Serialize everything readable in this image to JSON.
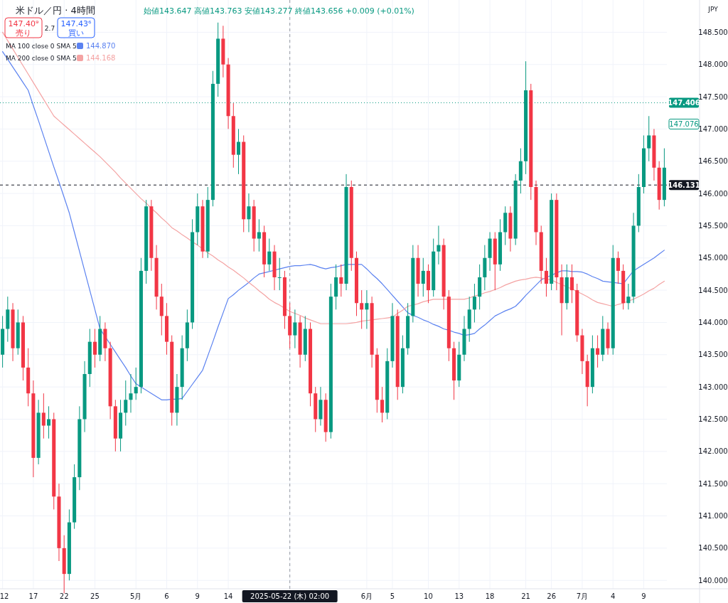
{
  "chart_data": {
    "type": "candlestick",
    "title": "米ドル／円 · 4時間",
    "subtitle": "始値143.647 高値143.763 安値143.277 終値143.656 +0.009 (+0.01%)",
    "categories": [
      "12",
      null,
      null,
      null,
      null,
      null,
      "17",
      null,
      null,
      null,
      null,
      null,
      "22",
      null,
      null,
      null,
      null,
      null,
      "25",
      null,
      null,
      null,
      null,
      null,
      null,
      null,
      "5月",
      null,
      null,
      null,
      null,
      null,
      "6",
      null,
      null,
      null,
      null,
      null,
      "9",
      null,
      null,
      null,
      null,
      null,
      "14",
      null,
      null,
      null,
      null,
      null,
      null,
      null,
      null,
      null,
      null,
      null,
      "2025-05-22 (木) 02:00",
      null,
      null,
      null,
      null,
      null,
      null,
      null,
      null,
      null,
      null,
      null,
      null,
      null,
      null,
      "6月",
      null,
      null,
      null,
      null,
      "5",
      null,
      null,
      null,
      null,
      null,
      null,
      "10",
      null,
      null,
      null,
      null,
      null,
      "13",
      null,
      null,
      null,
      null,
      null,
      "18",
      null,
      null,
      null,
      null,
      null,
      null,
      "21",
      null,
      null,
      null,
      null,
      "26",
      null,
      null,
      null,
      null,
      null,
      "7月",
      null,
      null,
      null,
      null,
      null,
      "4",
      null,
      null,
      null,
      null,
      null,
      "9",
      null,
      null,
      null,
      null
    ],
    "colors": [
      "#089981",
      "#089981",
      "#f23645",
      "#089981",
      "#f23645",
      "#f23645",
      "#f23645",
      "#089981",
      "#f23645",
      "#089981",
      "#f23645",
      "#f23645",
      "#f23645",
      "#089981",
      "#089981",
      "#089981",
      "#089981",
      "#089981",
      "#f23645",
      "#089981",
      "#f23645",
      "#f23645",
      "#f23645",
      "#089981",
      "#089981",
      "#089981",
      "#089981",
      "#089981",
      "#089981",
      "#f23645",
      "#f23645",
      "#f23645",
      "#f23645",
      "#f23645",
      "#089981",
      "#089981",
      "#089981",
      "#089981",
      "#089981",
      "#f23645",
      "#089981",
      "#089981",
      "#089981",
      "#f23645",
      "#f23645",
      "#f23645",
      "#089981",
      "#f23645",
      "#089981",
      "#f23645",
      "#089981",
      "#f23645",
      "#089981",
      "#f23645",
      "#089981",
      "#f23645",
      "#f23645",
      "#089981",
      "#f23645",
      "#089981",
      "#f23645",
      "#f23645",
      "#089981",
      "#f23645",
      "#089981",
      "#089981",
      "#f23645",
      "#089981",
      "#f23645",
      "#f23645",
      "#f23645",
      "#089981",
      "#f23645",
      "#f23645",
      "#f23645",
      "#089981",
      "#089981",
      "#f23645",
      "#089981",
      "#089981",
      "#089981",
      "#f23645",
      "#089981",
      "#f23645",
      "#089981",
      "#089981",
      "#f23645",
      "#f23645",
      "#f23645",
      "#089981",
      "#089981",
      "#089981",
      "#089981",
      "#089981",
      "#089981",
      "#089981",
      "#f23645",
      "#089981",
      "#089981",
      "#f23645",
      "#089981",
      "#089981",
      "#089981",
      "#f23645",
      "#f23645",
      "#f23645",
      "#f23645",
      "#089981",
      "#f23645",
      "#f23645",
      "#089981",
      "#f23645",
      "#f23645",
      "#f23645",
      "#f23645",
      "#089981",
      "#f23645",
      "#089981",
      "#f23645",
      "#089981",
      "#f23645",
      "#f23645",
      "#089981",
      "#089981",
      "#089981",
      "#089981",
      "#089981",
      "#f23645",
      "#f23645",
      "#089981"
    ],
    "ohlc": [
      [
        143.5,
        144.1,
        143.3,
        143.9
      ],
      [
        143.9,
        144.4,
        143.7,
        144.2
      ],
      [
        144.2,
        144.3,
        143.4,
        143.6
      ],
      [
        143.6,
        144.2,
        143.5,
        144.0
      ],
      [
        144.0,
        144.1,
        143.1,
        143.3
      ],
      [
        143.3,
        143.6,
        142.7,
        142.9
      ],
      [
        142.9,
        143.1,
        141.6,
        141.9
      ],
      [
        141.9,
        142.8,
        141.8,
        142.6
      ],
      [
        142.6,
        142.9,
        142.2,
        142.4
      ],
      [
        142.4,
        142.7,
        142.2,
        142.5
      ],
      [
        142.5,
        142.6,
        141.1,
        141.3
      ],
      [
        141.3,
        141.5,
        140.3,
        140.5
      ],
      [
        140.5,
        140.7,
        139.8,
        140.1
      ],
      [
        140.1,
        141.1,
        140.0,
        140.9
      ],
      [
        140.9,
        141.8,
        140.8,
        141.6
      ],
      [
        141.6,
        142.7,
        141.4,
        142.5
      ],
      [
        142.5,
        143.4,
        142.3,
        143.2
      ],
      [
        143.2,
        143.9,
        143.0,
        143.7
      ],
      [
        143.7,
        143.9,
        143.3,
        143.5
      ],
      [
        143.5,
        144.1,
        143.4,
        143.9
      ],
      [
        143.9,
        144.0,
        143.4,
        143.6
      ],
      [
        143.6,
        143.7,
        142.5,
        142.7
      ],
      [
        142.7,
        142.8,
        142.0,
        142.2
      ],
      [
        142.2,
        142.8,
        142.0,
        142.6
      ],
      [
        142.6,
        143.1,
        142.4,
        142.8
      ],
      [
        142.8,
        143.2,
        142.6,
        142.9
      ],
      [
        142.9,
        143.3,
        142.8,
        143.0
      ],
      [
        143.0,
        145.0,
        142.9,
        144.8
      ],
      [
        144.8,
        145.9,
        144.6,
        145.8
      ],
      [
        145.8,
        145.9,
        144.8,
        145.0
      ],
      [
        145.0,
        145.2,
        144.2,
        144.4
      ],
      [
        144.4,
        144.6,
        143.8,
        144.1
      ],
      [
        144.1,
        144.3,
        143.5,
        143.7
      ],
      [
        143.7,
        143.8,
        142.4,
        142.6
      ],
      [
        142.6,
        143.2,
        142.4,
        143.0
      ],
      [
        143.0,
        143.8,
        142.8,
        143.6
      ],
      [
        143.6,
        144.2,
        143.4,
        144.0
      ],
      [
        144.0,
        145.6,
        143.9,
        145.4
      ],
      [
        145.4,
        146.0,
        145.2,
        145.8
      ],
      [
        145.8,
        145.9,
        145.0,
        145.1
      ],
      [
        145.1,
        146.1,
        145.0,
        145.9
      ],
      [
        145.9,
        147.9,
        145.8,
        147.7
      ],
      [
        147.7,
        148.65,
        147.5,
        148.4
      ],
      [
        148.4,
        148.6,
        147.8,
        148.0
      ],
      [
        148.0,
        148.1,
        147.0,
        147.2
      ],
      [
        147.2,
        147.4,
        146.4,
        146.6
      ],
      [
        146.6,
        147.0,
        146.3,
        146.8
      ],
      [
        146.8,
        146.9,
        145.4,
        145.6
      ],
      [
        145.6,
        146.0,
        145.4,
        145.8
      ],
      [
        145.8,
        145.9,
        145.1,
        145.3
      ],
      [
        145.3,
        145.6,
        145.1,
        145.4
      ],
      [
        145.4,
        145.5,
        144.7,
        144.9
      ],
      [
        144.9,
        145.3,
        144.8,
        145.1
      ],
      [
        145.1,
        145.2,
        144.5,
        144.7
      ],
      [
        144.7,
        145.0,
        144.5,
        144.7
      ],
      [
        144.7,
        144.8,
        143.9,
        144.1
      ],
      [
        144.1,
        144.3,
        143.6,
        143.8
      ],
      [
        143.8,
        144.2,
        143.6,
        144.0
      ],
      [
        144.0,
        144.1,
        143.3,
        143.5
      ],
      [
        143.5,
        144.1,
        143.4,
        143.9
      ],
      [
        143.9,
        144.0,
        142.7,
        142.9
      ],
      [
        142.9,
        143.0,
        142.3,
        142.5
      ],
      [
        142.5,
        143.0,
        142.4,
        142.8
      ],
      [
        142.8,
        142.9,
        142.15,
        142.3
      ],
      [
        142.3,
        144.6,
        142.2,
        144.4
      ],
      [
        144.4,
        144.9,
        144.2,
        144.7
      ],
      [
        144.7,
        144.9,
        144.4,
        144.6
      ],
      [
        144.6,
        146.3,
        144.5,
        146.1
      ],
      [
        146.1,
        146.2,
        144.8,
        145.0
      ],
      [
        145.0,
        145.1,
        144.1,
        144.3
      ],
      [
        144.3,
        144.5,
        143.9,
        144.2
      ],
      [
        144.2,
        144.5,
        143.9,
        144.3
      ],
      [
        144.3,
        144.4,
        143.3,
        143.5
      ],
      [
        143.5,
        143.6,
        142.6,
        142.8
      ],
      [
        142.8,
        143.0,
        142.45,
        142.6
      ],
      [
        142.6,
        143.6,
        142.5,
        143.4
      ],
      [
        143.4,
        144.3,
        143.3,
        144.1
      ],
      [
        144.1,
        144.2,
        142.8,
        143.0
      ],
      [
        143.0,
        143.8,
        142.9,
        143.6
      ],
      [
        143.6,
        144.3,
        143.5,
        144.1
      ],
      [
        144.1,
        145.2,
        144.0,
        145.0
      ],
      [
        145.0,
        145.2,
        144.4,
        144.6
      ],
      [
        144.6,
        145.0,
        144.4,
        144.8
      ],
      [
        144.8,
        144.9,
        144.3,
        144.5
      ],
      [
        144.5,
        145.3,
        144.4,
        145.1
      ],
      [
        145.1,
        145.5,
        144.9,
        145.2
      ],
      [
        145.2,
        145.3,
        144.2,
        144.4
      ],
      [
        144.4,
        144.5,
        143.4,
        143.6
      ],
      [
        143.6,
        143.7,
        142.8,
        143.1
      ],
      [
        143.1,
        143.7,
        143.0,
        143.5
      ],
      [
        143.5,
        144.1,
        143.4,
        143.9
      ],
      [
        143.9,
        144.4,
        143.7,
        144.2
      ],
      [
        144.2,
        144.6,
        144.0,
        144.4
      ],
      [
        144.4,
        144.9,
        144.2,
        144.7
      ],
      [
        144.7,
        145.2,
        144.5,
        145.0
      ],
      [
        145.0,
        145.4,
        144.8,
        145.3
      ],
      [
        145.3,
        145.4,
        144.5,
        144.9
      ],
      [
        144.9,
        145.6,
        144.8,
        145.4
      ],
      [
        145.4,
        145.8,
        145.2,
        145.7
      ],
      [
        145.7,
        145.8,
        145.1,
        145.3
      ],
      [
        145.3,
        146.3,
        145.2,
        146.2
      ],
      [
        146.2,
        146.7,
        146.0,
        146.5
      ],
      [
        146.5,
        148.05,
        146.3,
        147.6
      ],
      [
        147.6,
        147.7,
        145.9,
        146.1
      ],
      [
        146.1,
        146.2,
        145.2,
        145.4
      ],
      [
        145.4,
        145.5,
        144.6,
        144.8
      ],
      [
        144.8,
        145.0,
        144.4,
        144.6
      ],
      [
        144.6,
        146.0,
        144.5,
        145.9
      ],
      [
        145.9,
        146.0,
        144.5,
        144.7
      ],
      [
        144.7,
        144.9,
        143.8,
        144.3
      ],
      [
        144.3,
        144.9,
        144.2,
        144.7
      ],
      [
        144.7,
        144.9,
        144.3,
        144.5
      ],
      [
        144.5,
        144.6,
        143.7,
        143.8
      ],
      [
        143.8,
        143.9,
        143.2,
        143.4
      ],
      [
        143.4,
        143.5,
        142.7,
        143.0
      ],
      [
        143.0,
        143.8,
        142.9,
        143.6
      ],
      [
        143.6,
        143.8,
        143.3,
        143.5
      ],
      [
        143.5,
        144.1,
        143.4,
        143.9
      ],
      [
        143.9,
        144.0,
        143.5,
        143.6
      ],
      [
        143.6,
        145.2,
        143.5,
        145.0
      ],
      [
        145.0,
        145.1,
        144.6,
        144.8
      ],
      [
        144.8,
        144.9,
        144.2,
        144.3
      ],
      [
        144.3,
        144.6,
        144.2,
        144.4
      ],
      [
        144.4,
        145.7,
        144.3,
        145.5
      ],
      [
        145.5,
        146.3,
        145.4,
        146.1
      ],
      [
        146.1,
        146.9,
        146.0,
        146.7
      ],
      [
        146.7,
        147.2,
        146.5,
        146.9
      ],
      [
        146.9,
        147.0,
        146.2,
        146.4
      ],
      [
        146.4,
        146.5,
        145.75,
        145.9
      ],
      [
        145.9,
        146.7,
        145.8,
        146.4
      ]
    ],
    "series": [
      {
        "name": "MA 100 close 0 SMA 5",
        "type": "line",
        "color": "#5b82f0",
        "values": [
          148.2,
          148.08,
          147.96,
          147.84,
          147.72,
          147.6,
          147.36,
          147.13,
          146.89,
          146.65,
          146.41,
          146.18,
          145.94,
          145.7,
          145.4,
          145.1,
          144.8,
          144.5,
          144.2,
          143.9,
          143.78,
          143.66,
          143.54,
          143.42,
          143.3,
          143.17,
          143.05,
          143.0,
          142.95,
          142.9,
          142.85,
          142.8,
          142.8,
          142.81,
          142.81,
          142.82,
          142.93,
          143.04,
          143.15,
          143.26,
          143.48,
          143.7,
          143.93,
          144.15,
          144.37,
          144.43,
          144.5,
          144.56,
          144.62,
          144.69,
          144.75,
          144.77,
          144.79,
          144.81,
          144.83,
          144.85,
          144.87,
          144.88,
          144.88,
          144.89,
          144.9,
          144.88,
          144.85,
          144.83,
          144.85,
          144.86,
          144.88,
          144.9,
          144.9,
          144.9,
          144.9,
          144.83,
          144.75,
          144.68,
          144.6,
          144.51,
          144.42,
          144.33,
          144.24,
          144.15,
          144.11,
          144.08,
          144.04,
          144.01,
          143.97,
          143.94,
          143.9,
          143.88,
          143.85,
          143.83,
          143.8,
          143.81,
          143.83,
          143.9,
          143.96,
          144.03,
          144.1,
          144.14,
          144.18,
          144.21,
          144.25,
          144.33,
          144.42,
          144.5,
          144.58,
          144.66,
          144.7,
          144.73,
          144.77,
          144.8,
          144.8,
          144.79,
          144.79,
          144.78,
          144.75,
          144.71,
          144.68,
          144.64,
          144.63,
          144.62,
          144.61,
          144.6,
          144.7,
          144.8,
          144.85,
          144.9,
          144.95,
          145.0,
          145.06,
          145.12
        ]
      },
      {
        "name": "MA 200 close 0 SMA 5",
        "type": "line",
        "color": "#f4a3a3",
        "values": [
          148.5,
          148.37,
          148.24,
          148.11,
          147.98,
          147.85,
          147.72,
          147.59,
          147.46,
          147.33,
          147.2,
          147.13,
          147.06,
          146.99,
          146.92,
          146.85,
          146.78,
          146.71,
          146.64,
          146.57,
          146.49,
          146.41,
          146.33,
          146.24,
          146.16,
          146.08,
          146.0,
          145.92,
          145.85,
          145.77,
          145.7,
          145.62,
          145.55,
          145.47,
          145.42,
          145.36,
          145.31,
          145.25,
          145.2,
          145.14,
          145.08,
          145.03,
          144.97,
          144.92,
          144.86,
          144.81,
          144.75,
          144.69,
          144.62,
          144.56,
          144.49,
          144.43,
          144.36,
          144.31,
          144.27,
          144.22,
          144.17,
          144.14,
          144.11,
          144.07,
          144.04,
          144.01,
          143.98,
          143.98,
          143.98,
          143.98,
          143.98,
          143.98,
          143.99,
          144.0,
          144.02,
          144.03,
          144.04,
          144.05,
          144.06,
          144.07,
          144.08,
          144.14,
          144.19,
          144.25,
          144.27,
          144.29,
          144.32,
          144.34,
          144.36,
          144.36,
          144.36,
          144.36,
          144.36,
          144.36,
          144.36,
          144.38,
          144.41,
          144.43,
          144.46,
          144.48,
          144.51,
          144.54,
          144.58,
          144.61,
          144.64,
          144.66,
          144.67,
          144.69,
          144.7,
          144.69,
          144.67,
          144.66,
          144.62,
          144.59,
          144.55,
          144.52,
          144.48,
          144.44,
          144.4,
          144.35,
          144.31,
          144.29,
          144.27,
          144.25,
          144.28,
          144.3,
          144.33,
          144.36,
          144.4,
          144.44,
          144.49,
          144.53,
          144.59,
          144.64
        ]
      }
    ],
    "ylim": [
      139.87,
      149.0
    ],
    "yticks": [
      {
        "value": 140,
        "label": "140.000"
      },
      {
        "value": 140.5,
        "label": "140.500"
      },
      {
        "value": 141,
        "label": "141.000"
      },
      {
        "value": 141.5,
        "label": "141.500"
      },
      {
        "value": 142,
        "label": "142.000"
      },
      {
        "value": 142.5,
        "label": "142.500"
      },
      {
        "value": 143,
        "label": "143.000"
      },
      {
        "value": 143.5,
        "label": "143.500"
      },
      {
        "value": 144,
        "label": "144.000"
      },
      {
        "value": 144.5,
        "label": "144.500"
      },
      {
        "value": 145,
        "label": "145.000"
      },
      {
        "value": 145.5,
        "label": "145.500"
      },
      {
        "value": 146,
        "label": "146.000"
      },
      {
        "value": 146.5,
        "label": "146.500"
      },
      {
        "value": 147,
        "label": "147.000"
      },
      {
        "value": 147.5,
        "label": "147.500"
      },
      {
        "value": 148,
        "label": "148.000"
      },
      {
        "value": 148.5,
        "label": "148.500"
      }
    ],
    "ref_lines": [
      {
        "axis": "y",
        "value": 147.406,
        "label": "147.406",
        "color": "#089981",
        "line_style": "dotted"
      },
      {
        "axis": "y",
        "value": 146.131,
        "label": "146.131",
        "color": "#131722",
        "line_style": "dashed"
      },
      {
        "axis": "x",
        "value": "2025-05-22 (木) 02:00",
        "color": "#9598a1",
        "line_style": "dashed"
      }
    ],
    "annotations": [
      "147.40⁹",
      "売り",
      "2.7",
      "147.43⁶",
      "買い",
      "144.870",
      "144.168",
      "JPY",
      {
        "text": "147.076",
        "y": 147.076
      }
    ],
    "grid": true,
    "legend": "top left"
  }
}
